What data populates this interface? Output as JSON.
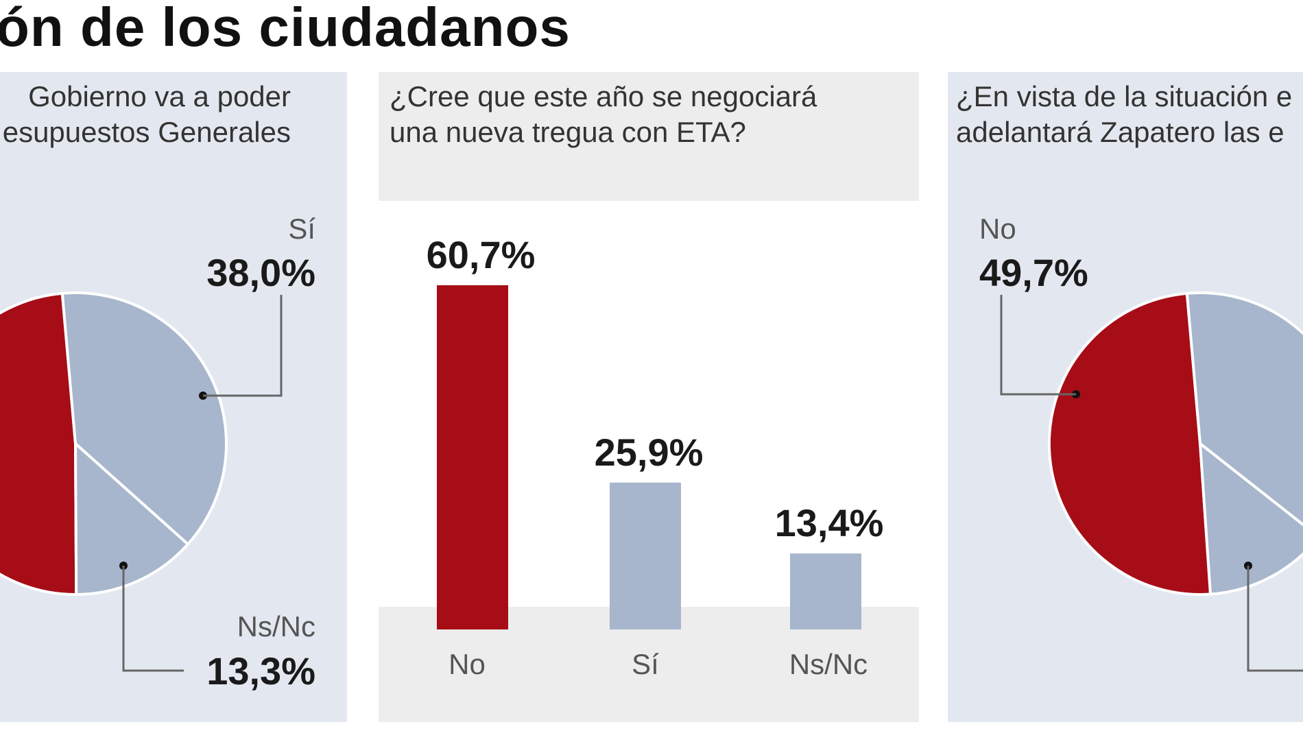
{
  "title": "ón de los ciudadanos",
  "colors": {
    "red": "#a70d17",
    "blue_gray": "#a7b6cc",
    "panel_bg": "#e3e8f0",
    "band_bg": "#ededed"
  },
  "chart_data": [
    {
      "type": "pie",
      "title_lines": [
        "Gobierno va a poder",
        "esupuestos Generales"
      ],
      "slices": [
        {
          "label": "Sí",
          "value": 38.0,
          "display": "38,0%",
          "color": "#a7b6cc"
        },
        {
          "label": "Ns/Nc",
          "value": 13.3,
          "display": "13,3%",
          "color": "#a7b6cc"
        },
        {
          "label": "",
          "value": 48.7,
          "display": "",
          "color": "#a70d17"
        }
      ]
    },
    {
      "type": "bar",
      "title_lines": [
        "¿Cree que este año se negociará",
        "una nueva tregua con ETA?"
      ],
      "categories": [
        "No",
        "Sí",
        "Ns/Nc"
      ],
      "values": [
        60.7,
        25.9,
        13.4
      ],
      "display": [
        "60,7%",
        "25,9%",
        "13,4%"
      ],
      "colors": [
        "#a70d17",
        "#a7b6cc",
        "#a7b6cc"
      ],
      "ylim": [
        0,
        60.7
      ]
    },
    {
      "type": "pie",
      "title_lines": [
        "¿En vista de la situación e",
        "adelantará Zapatero las e"
      ],
      "slices": [
        {
          "label": "No",
          "value": 49.7,
          "display": "49,7%",
          "color": "#a70d17"
        },
        {
          "label": "",
          "value": 37.0,
          "display": "",
          "color": "#a7b6cc"
        },
        {
          "label": "",
          "value": 13.3,
          "display": "",
          "color": "#a7b6cc"
        }
      ]
    }
  ]
}
